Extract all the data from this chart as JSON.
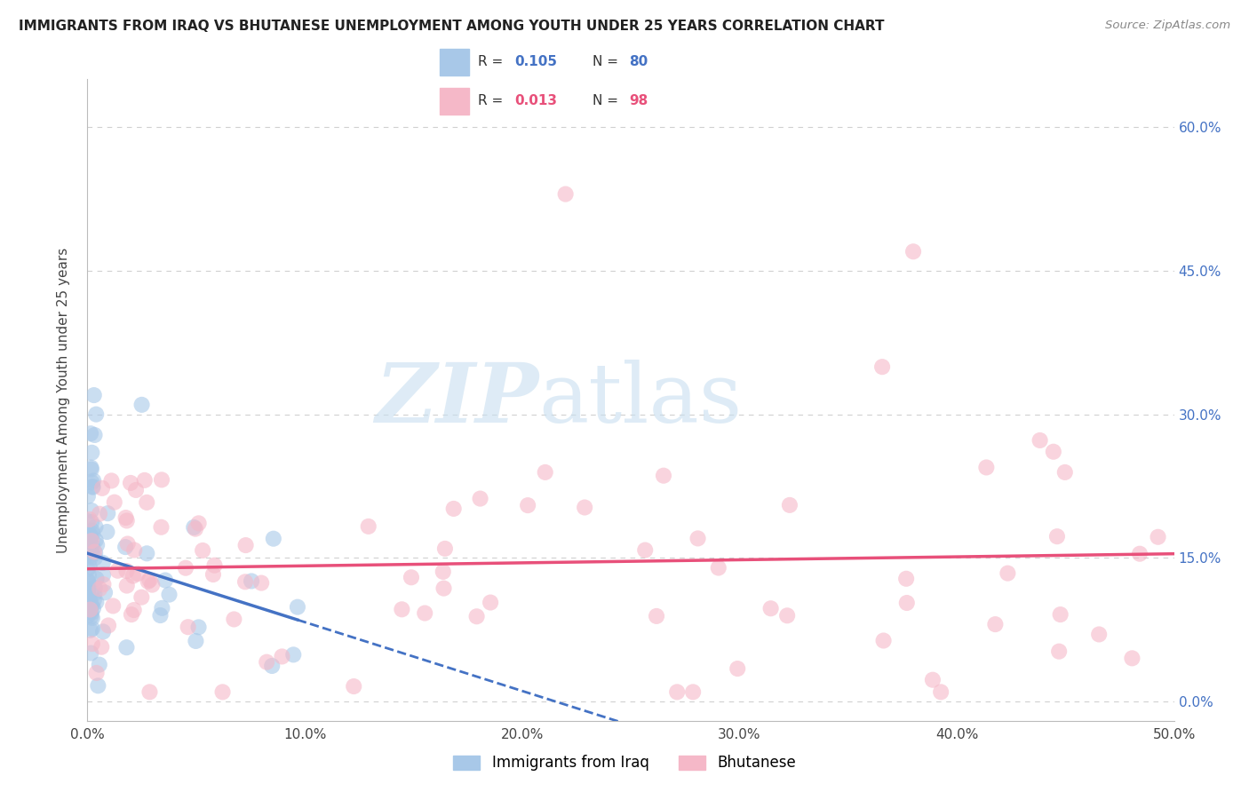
{
  "title": "IMMIGRANTS FROM IRAQ VS BHUTANESE UNEMPLOYMENT AMONG YOUTH UNDER 25 YEARS CORRELATION CHART",
  "source": "Source: ZipAtlas.com",
  "ylabel": "Unemployment Among Youth under 25 years",
  "legend_label1": "Immigrants from Iraq",
  "legend_label2": "Bhutanese",
  "r1": 0.105,
  "n1": 80,
  "r2": 0.013,
  "n2": 98,
  "xlim": [
    0.0,
    0.5
  ],
  "ylim": [
    -0.02,
    0.65
  ],
  "xticks": [
    0.0,
    0.1,
    0.2,
    0.3,
    0.4,
    0.5
  ],
  "xtick_labels": [
    "0.0%",
    "10.0%",
    "20.0%",
    "30.0%",
    "40.0%",
    "50.0%"
  ],
  "ytick_labels": [
    "0.0%",
    "15.0%",
    "30.0%",
    "45.0%",
    "60.0%"
  ],
  "yticks": [
    0.0,
    0.15,
    0.3,
    0.45,
    0.6
  ],
  "color_blue": "#a8c8e8",
  "color_pink": "#f5b8c8",
  "line_blue": "#4472c4",
  "line_pink": "#e8507a",
  "background": "#ffffff",
  "grid_color": "#d0d0d0",
  "title_color": "#222222",
  "source_color": "#888888",
  "blue_tick_color": "#4472c4",
  "pink_r_color": "#e8507a"
}
